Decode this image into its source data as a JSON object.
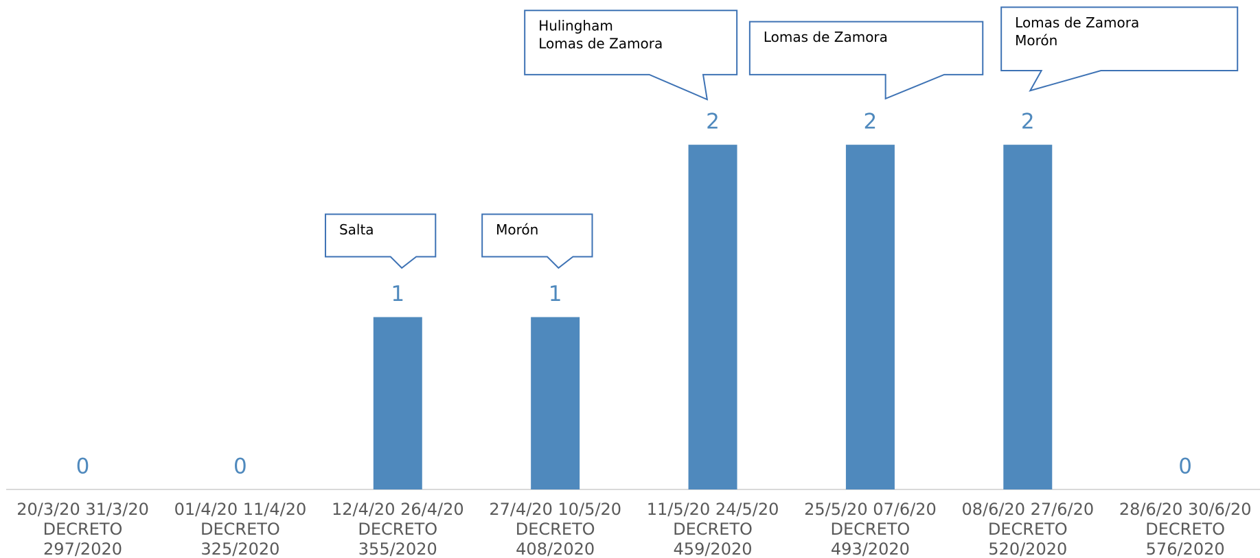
{
  "chart_data": {
    "type": "bar",
    "categories": [
      [
        "20/3/20 31/3/20",
        "DECRETO",
        "297/2020"
      ],
      [
        "01/4/20 11/4/20",
        "DECRETO",
        "325/2020"
      ],
      [
        "12/4/20 26/4/20",
        "DECRETO",
        "355/2020"
      ],
      [
        "27/4/20 10/5/20",
        "DECRETO",
        "408/2020"
      ],
      [
        "11/5/20 24/5/20",
        "DECRETO",
        "459/2020"
      ],
      [
        "25/5/20 07/6/20",
        "DECRETO",
        "493/2020"
      ],
      [
        "08/6/20 27/6/20",
        "DECRETO",
        "520/2020"
      ],
      [
        "28/6/20 30/6/20",
        "DECRETO",
        "576/2020"
      ]
    ],
    "values": [
      0,
      0,
      1,
      1,
      2,
      2,
      2,
      0
    ],
    "annotations": [
      null,
      null,
      [
        "Salta"
      ],
      [
        "Morón"
      ],
      [
        "Hulingham",
        "Lomas de  Zamora"
      ],
      [
        "Lomas de  Zamora"
      ],
      [
        "Lomas de  Zamora",
        "Morón"
      ],
      null
    ],
    "color": "#4f89bd",
    "ylim": [
      0,
      2.8
    ]
  }
}
